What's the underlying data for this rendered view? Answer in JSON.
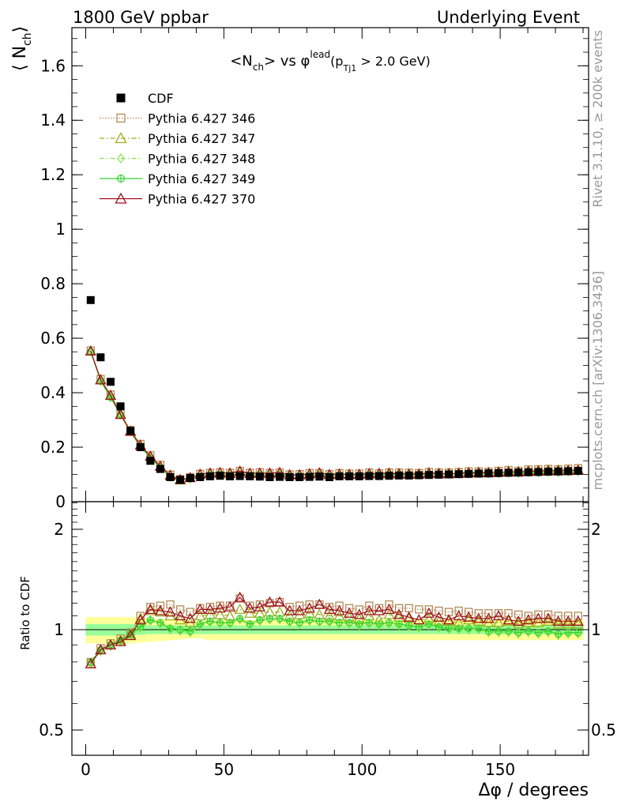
{
  "header": {
    "left": "1800 GeV ppbar",
    "right": "Underlying Event"
  },
  "side": {
    "rivet": "Rivet 3.1.10, ≥ 200k events",
    "mcplots": "mcplots.cern.ch [arXiv:1306.3436]"
  },
  "chart_data": [
    {
      "panel": "main",
      "type": "line",
      "title_parts": {
        "t1": "<N",
        "t1sub": "ch",
        "t2": "> vs φ",
        "t2sup": "lead",
        "t3": "(p",
        "t3sub": "Tj1",
        "t4": " > 2.0 GeV)"
      },
      "ylabel_parts": {
        "open": "⟨ N",
        "sub": "ch",
        "close": "⟩"
      },
      "xlim": [
        -5,
        182
      ],
      "ylim": [
        0,
        1.74
      ],
      "yticks": [
        0,
        0.2,
        0.4,
        0.6,
        0.8,
        1,
        1.2,
        1.4,
        1.6
      ],
      "ytick_labels": [
        "0",
        "0.2",
        "0.4",
        "0.6",
        "0.8",
        "1",
        "1.2",
        "1.4",
        "1.6"
      ],
      "grid": false,
      "legend_position": "top-left",
      "x": [
        1.8,
        5.4,
        9,
        12.6,
        16.2,
        19.8,
        23.4,
        27,
        30.6,
        34.2,
        37.8,
        41.4,
        45,
        48.6,
        52.2,
        55.8,
        59.4,
        63,
        66.6,
        70.2,
        73.8,
        77.4,
        81,
        84.6,
        88.2,
        91.8,
        95.4,
        99,
        102.6,
        106.2,
        109.8,
        113.4,
        117,
        120.6,
        124.2,
        127.8,
        131.4,
        135,
        138.6,
        142.2,
        145.8,
        149.4,
        153,
        156.6,
        160.2,
        163.8,
        167.4,
        171,
        174.6,
        178.2
      ],
      "series": [
        {
          "name": "CDF",
          "color": "#000000",
          "marker": "square-filled",
          "style": "none",
          "values": [
            0.74,
            0.53,
            0.44,
            0.35,
            0.26,
            0.2,
            0.15,
            0.12,
            0.09,
            0.08,
            0.087,
            0.09,
            0.093,
            0.095,
            0.093,
            0.094,
            0.093,
            0.092,
            0.09,
            0.091,
            0.09,
            0.09,
            0.091,
            0.092,
            0.09,
            0.093,
            0.093,
            0.093,
            0.094,
            0.094,
            0.095,
            0.096,
            0.096,
            0.097,
            0.098,
            0.099,
            0.1,
            0.101,
            0.102,
            0.103,
            0.104,
            0.105,
            0.106,
            0.107,
            0.108,
            0.109,
            0.11,
            0.111,
            0.112,
            0.113
          ]
        },
        {
          "name": "Pythia 6.427 346",
          "color": "#b38b56",
          "marker": "square-open",
          "style": "dotted",
          "values": [
            0.555,
            0.45,
            0.393,
            0.325,
            0.263,
            0.212,
            0.17,
            0.135,
            0.099,
            0.083,
            0.09,
            0.102,
            0.106,
            0.108,
            0.106,
            0.113,
            0.106,
            0.108,
            0.105,
            0.107,
            0.1,
            0.101,
            0.105,
            0.105,
            0.101,
            0.105,
            0.103,
            0.103,
            0.107,
            0.104,
            0.107,
            0.107,
            0.106,
            0.105,
            0.109,
            0.107,
            0.107,
            0.109,
            0.111,
            0.111,
            0.11,
            0.113,
            0.116,
            0.113,
            0.118,
            0.119,
            0.12,
            0.119,
            0.121,
            0.123
          ]
        },
        {
          "name": "Pythia 6.427 347",
          "color": "#9aaf1b",
          "marker": "triangle-open",
          "style": "dashdot",
          "values": [
            0.553,
            0.448,
            0.391,
            0.322,
            0.26,
            0.208,
            0.166,
            0.129,
            0.095,
            0.08,
            0.088,
            0.1,
            0.104,
            0.105,
            0.103,
            0.109,
            0.104,
            0.104,
            0.102,
            0.104,
            0.098,
            0.098,
            0.102,
            0.103,
            0.099,
            0.102,
            0.101,
            0.101,
            0.103,
            0.101,
            0.105,
            0.104,
            0.103,
            0.103,
            0.106,
            0.105,
            0.105,
            0.106,
            0.108,
            0.109,
            0.108,
            0.11,
            0.112,
            0.111,
            0.114,
            0.115,
            0.117,
            0.116,
            0.117,
            0.118
          ]
        },
        {
          "name": "Pythia 6.427 348",
          "color": "#8ee04a",
          "marker": "diamond-open",
          "style": "dashdot",
          "values": [
            0.55,
            0.442,
            0.382,
            0.318,
            0.256,
            0.201,
            0.16,
            0.124,
            0.09,
            0.078,
            0.083,
            0.093,
            0.098,
            0.098,
            0.097,
            0.1,
            0.096,
            0.098,
            0.097,
            0.098,
            0.095,
            0.094,
            0.097,
            0.097,
            0.095,
            0.097,
            0.097,
            0.096,
            0.098,
            0.097,
            0.099,
            0.099,
            0.098,
            0.098,
            0.101,
            0.1,
            0.1,
            0.101,
            0.102,
            0.103,
            0.102,
            0.103,
            0.104,
            0.104,
            0.106,
            0.106,
            0.108,
            0.107,
            0.109,
            0.11
          ]
        },
        {
          "name": "Pythia 6.427 349",
          "color": "#33d42f",
          "marker": "circle-plus",
          "style": "solid",
          "values": [
            0.551,
            0.443,
            0.383,
            0.319,
            0.257,
            0.202,
            0.161,
            0.125,
            0.091,
            0.079,
            0.084,
            0.094,
            0.099,
            0.099,
            0.098,
            0.101,
            0.097,
            0.099,
            0.098,
            0.099,
            0.096,
            0.095,
            0.098,
            0.098,
            0.096,
            0.098,
            0.098,
            0.097,
            0.099,
            0.098,
            0.1,
            0.1,
            0.099,
            0.099,
            0.102,
            0.101,
            0.101,
            0.102,
            0.103,
            0.104,
            0.103,
            0.104,
            0.105,
            0.105,
            0.107,
            0.107,
            0.109,
            0.108,
            0.11,
            0.111
          ]
        },
        {
          "name": "Pythia 6.427 370",
          "color": "#a0101c",
          "marker": "triangle-open",
          "style": "solid",
          "values": [
            0.553,
            0.447,
            0.39,
            0.32,
            0.258,
            0.207,
            0.167,
            0.13,
            0.097,
            0.081,
            0.088,
            0.101,
            0.105,
            0.107,
            0.105,
            0.112,
            0.104,
            0.105,
            0.105,
            0.107,
            0.099,
            0.099,
            0.102,
            0.106,
            0.1,
            0.101,
            0.1,
            0.1,
            0.103,
            0.104,
            0.104,
            0.102,
            0.101,
            0.101,
            0.105,
            0.103,
            0.102,
            0.104,
            0.106,
            0.106,
            0.106,
            0.108,
            0.109,
            0.109,
            0.111,
            0.112,
            0.113,
            0.113,
            0.114,
            0.115
          ]
        }
      ]
    },
    {
      "panel": "ratio",
      "type": "line",
      "ylabel": "Ratio to CDF",
      "ylim": [
        0.42,
        2.42
      ],
      "yscale": "log",
      "yticks": [
        0.5,
        1,
        2
      ],
      "ytick_labels": [
        "0.5",
        "1",
        "2"
      ],
      "xlim": [
        -5,
        182
      ],
      "xticks": [
        0,
        50,
        100,
        150
      ],
      "xtick_labels": [
        "0",
        "50",
        "100",
        "150"
      ],
      "xlabel": "Δφ / degrees",
      "band_outer": {
        "color": "#ffff99",
        "halfwidth": [
          0.09,
          0.09,
          0.09,
          0.09,
          0.09,
          0.085,
          0.08,
          0.075,
          0.07,
          0.065,
          0.06,
          0.06,
          0.07,
          0.07,
          0.07,
          0.07,
          0.07,
          0.07,
          0.07,
          0.07,
          0.07,
          0.07,
          0.07,
          0.07,
          0.07,
          0.07,
          0.07,
          0.07,
          0.07,
          0.07,
          0.07,
          0.07,
          0.07,
          0.07,
          0.07,
          0.07,
          0.07,
          0.07,
          0.07,
          0.07,
          0.07,
          0.07,
          0.07,
          0.07,
          0.07,
          0.07,
          0.07,
          0.07,
          0.07,
          0.07
        ]
      },
      "band_inner": {
        "color": "#99ff99",
        "halfwidth": [
          0.04,
          0.04,
          0.04,
          0.04,
          0.04,
          0.035,
          0.03,
          0.03,
          0.03,
          0.03,
          0.03,
          0.03,
          0.03,
          0.03,
          0.03,
          0.03,
          0.03,
          0.03,
          0.03,
          0.03,
          0.03,
          0.03,
          0.03,
          0.03,
          0.03,
          0.03,
          0.03,
          0.03,
          0.03,
          0.03,
          0.03,
          0.03,
          0.03,
          0.03,
          0.03,
          0.03,
          0.03,
          0.03,
          0.03,
          0.03,
          0.03,
          0.03,
          0.03,
          0.03,
          0.03,
          0.03,
          0.03,
          0.03,
          0.03,
          0.03
        ]
      },
      "series": [
        {
          "name": "Pythia 6.427 346",
          "color": "#b38b56",
          "marker": "square-open",
          "style": "dotted",
          "values": [
            0.8,
            0.88,
            0.91,
            0.94,
            0.98,
            1.1,
            1.17,
            1.18,
            1.19,
            1.15,
            1.13,
            1.16,
            1.17,
            1.18,
            1.18,
            1.24,
            1.18,
            1.19,
            1.2,
            1.21,
            1.17,
            1.18,
            1.19,
            1.19,
            1.17,
            1.18,
            1.16,
            1.15,
            1.18,
            1.16,
            1.19,
            1.16,
            1.16,
            1.15,
            1.15,
            1.14,
            1.13,
            1.14,
            1.13,
            1.12,
            1.12,
            1.12,
            1.12,
            1.11,
            1.1,
            1.11,
            1.11,
            1.1,
            1.1,
            1.1
          ]
        },
        {
          "name": "Pythia 6.427 347",
          "color": "#9aaf1b",
          "marker": "triangle-open",
          "style": "dashdot",
          "values": [
            0.79,
            0.87,
            0.9,
            0.93,
            0.97,
            1.08,
            1.14,
            1.13,
            1.1,
            1.07,
            1.05,
            1.1,
            1.11,
            1.11,
            1.1,
            1.15,
            1.12,
            1.12,
            1.13,
            1.13,
            1.1,
            1.11,
            1.12,
            1.11,
            1.1,
            1.1,
            1.09,
            1.08,
            1.1,
            1.07,
            1.11,
            1.09,
            1.08,
            1.07,
            1.08,
            1.06,
            1.06,
            1.05,
            1.07,
            1.06,
            1.05,
            1.05,
            1.06,
            1.04,
            1.05,
            1.05,
            1.06,
            1.04,
            1.04,
            1.04
          ]
        },
        {
          "name": "Pythia 6.427 348",
          "color": "#8ee04a",
          "marker": "diamond-open",
          "style": "dashdot",
          "values": [
            0.79,
            0.86,
            0.89,
            0.92,
            0.96,
            1.01,
            1.06,
            1.04,
            1.0,
            0.99,
            0.98,
            1.03,
            1.05,
            1.04,
            1.04,
            1.07,
            1.03,
            1.06,
            1.07,
            1.07,
            1.05,
            1.04,
            1.06,
            1.05,
            1.05,
            1.04,
            1.04,
            1.03,
            1.04,
            1.03,
            1.04,
            1.03,
            1.02,
            1.01,
            1.03,
            1.01,
            1.0,
            1.0,
            1.0,
            1.0,
            0.98,
            0.98,
            0.98,
            0.97,
            0.98,
            0.97,
            0.98,
            0.96,
            0.97,
            0.97
          ]
        },
        {
          "name": "Pythia 6.427 349",
          "color": "#33d42f",
          "marker": "circle-plus",
          "style": "solid",
          "values": [
            0.8,
            0.87,
            0.9,
            0.93,
            0.97,
            1.02,
            1.07,
            1.05,
            1.01,
            1.0,
            0.99,
            1.04,
            1.06,
            1.05,
            1.05,
            1.08,
            1.04,
            1.07,
            1.08,
            1.08,
            1.06,
            1.05,
            1.07,
            1.06,
            1.06,
            1.05,
            1.05,
            1.04,
            1.05,
            1.04,
            1.05,
            1.04,
            1.03,
            1.02,
            1.04,
            1.02,
            1.01,
            1.01,
            1.01,
            1.01,
            0.99,
            0.99,
            0.99,
            0.98,
            0.99,
            0.98,
            0.99,
            0.97,
            0.98,
            0.98
          ]
        },
        {
          "name": "Pythia 6.427 370",
          "color": "#a0101c",
          "marker": "triangle-open",
          "style": "solid",
          "values": [
            0.79,
            0.87,
            0.9,
            0.92,
            0.96,
            1.07,
            1.15,
            1.14,
            1.13,
            1.1,
            1.08,
            1.15,
            1.15,
            1.16,
            1.17,
            1.25,
            1.16,
            1.17,
            1.21,
            1.21,
            1.14,
            1.14,
            1.16,
            1.19,
            1.15,
            1.14,
            1.12,
            1.11,
            1.14,
            1.14,
            1.15,
            1.11,
            1.09,
            1.07,
            1.12,
            1.09,
            1.07,
            1.1,
            1.09,
            1.08,
            1.08,
            1.1,
            1.07,
            1.06,
            1.07,
            1.08,
            1.08,
            1.06,
            1.06,
            1.06
          ]
        }
      ]
    }
  ]
}
